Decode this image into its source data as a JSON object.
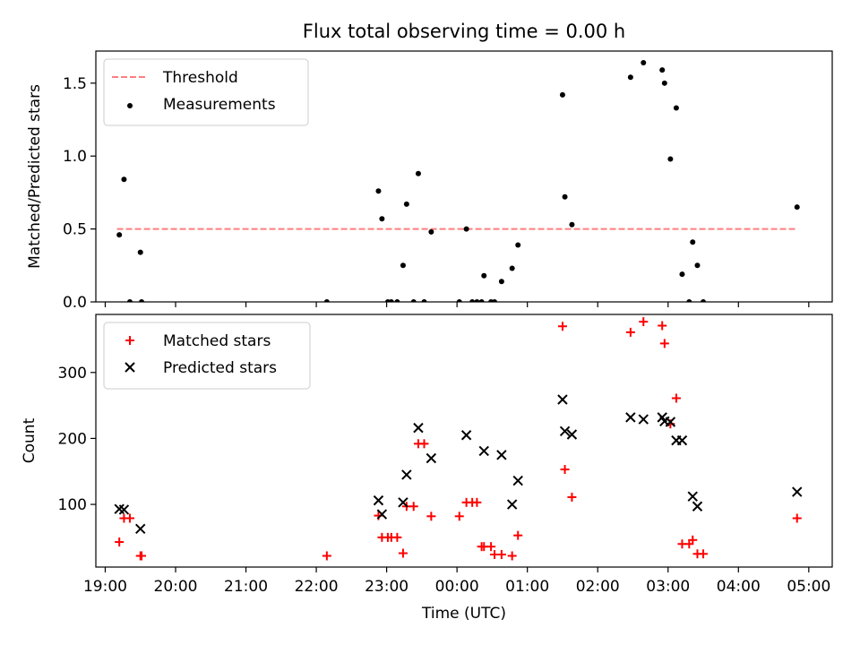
{
  "chart_data": [
    {
      "type": "scatter",
      "title": "Flux total observing time = 0.00 h",
      "ylabel": "Matched/Predicted stars",
      "ylim": [
        0,
        1.72
      ],
      "yticks": [
        "0.0",
        "0.5",
        "1.0",
        "1.5"
      ],
      "ytick_values": [
        0,
        0.5,
        1.0,
        1.5
      ],
      "legend_position": "top-left",
      "threshold": {
        "name": "Threshold",
        "value": 0.5,
        "x_range": [
          "19:10",
          "04:50"
        ],
        "color": "#ff7f7f",
        "style": "dashed"
      },
      "series": [
        {
          "name": "Measurements",
          "color": "#000000",
          "marker": "dot",
          "points": [
            [
              "19:12",
              0.46
            ],
            [
              "19:16",
              0.84
            ],
            [
              "19:21",
              0.0
            ],
            [
              "19:30",
              0.34
            ],
            [
              "19:31",
              0.0
            ],
            [
              "22:09",
              0.0
            ],
            [
              "22:53",
              0.76
            ],
            [
              "22:56",
              0.57
            ],
            [
              "23:01",
              0.0
            ],
            [
              "23:04",
              0.0
            ],
            [
              "23:09",
              0.0
            ],
            [
              "23:14",
              0.25
            ],
            [
              "23:17",
              0.67
            ],
            [
              "23:23",
              0.0
            ],
            [
              "23:27",
              0.88
            ],
            [
              "23:32",
              0.0
            ],
            [
              "23:38",
              0.48
            ],
            [
              "00:02",
              0.0
            ],
            [
              "00:08",
              0.5
            ],
            [
              "00:13",
              0.0
            ],
            [
              "00:17",
              0.0
            ],
            [
              "00:21",
              0.0
            ],
            [
              "00:23",
              0.18
            ],
            [
              "00:29",
              0.0
            ],
            [
              "00:32",
              0.0
            ],
            [
              "00:38",
              0.14
            ],
            [
              "00:47",
              0.23
            ],
            [
              "00:52",
              0.39
            ],
            [
              "01:30",
              1.42
            ],
            [
              "01:32",
              0.72
            ],
            [
              "01:38",
              0.53
            ],
            [
              "02:28",
              1.54
            ],
            [
              "02:39",
              1.64
            ],
            [
              "02:55",
              1.59
            ],
            [
              "02:57",
              1.5
            ],
            [
              "03:02",
              0.98
            ],
            [
              "03:07",
              1.33
            ],
            [
              "03:12",
              0.19
            ],
            [
              "03:18",
              0.0
            ],
            [
              "03:21",
              0.41
            ],
            [
              "03:25",
              0.25
            ],
            [
              "03:30",
              0.0
            ],
            [
              "04:50",
              0.65
            ]
          ]
        }
      ]
    },
    {
      "type": "scatter",
      "xlabel": "Time (UTC)",
      "ylabel": "Count",
      "ylim": [
        5,
        388
      ],
      "yticks": [
        "100",
        "200",
        "300"
      ],
      "ytick_values": [
        100,
        200,
        300
      ],
      "xlim": [
        "18:52",
        "05:20"
      ],
      "xtick_labels": [
        "19:00",
        "20:00",
        "21:00",
        "22:00",
        "23:00",
        "00:00",
        "01:00",
        "02:00",
        "03:00",
        "04:00",
        "05:00"
      ],
      "legend_position": "top-left",
      "series": [
        {
          "name": "Matched stars",
          "color": "#ff0000",
          "marker": "plus",
          "points": [
            [
              "19:12",
              43
            ],
            [
              "19:16",
              79
            ],
            [
              "19:21",
              79
            ],
            [
              "19:30",
              22
            ],
            [
              "19:31",
              22
            ],
            [
              "22:09",
              22
            ],
            [
              "22:53",
              83
            ],
            [
              "22:56",
              50
            ],
            [
              "23:01",
              50
            ],
            [
              "23:04",
              50
            ],
            [
              "23:09",
              50
            ],
            [
              "23:14",
              26
            ],
            [
              "23:17",
              97
            ],
            [
              "23:23",
              97
            ],
            [
              "23:27",
              192
            ],
            [
              "23:32",
              192
            ],
            [
              "23:38",
              82
            ],
            [
              "00:02",
              82
            ],
            [
              "00:08",
              103
            ],
            [
              "00:13",
              103
            ],
            [
              "00:17",
              103
            ],
            [
              "00:21",
              36
            ],
            [
              "00:23",
              36
            ],
            [
              "00:29",
              36
            ],
            [
              "00:32",
              24
            ],
            [
              "00:38",
              24
            ],
            [
              "00:47",
              22
            ],
            [
              "00:52",
              53
            ],
            [
              "01:30",
              370
            ],
            [
              "01:32",
              153
            ],
            [
              "01:38",
              111
            ],
            [
              "02:28",
              361
            ],
            [
              "02:39",
              377
            ],
            [
              "02:55",
              371
            ],
            [
              "02:57",
              344
            ],
            [
              "03:02",
              222
            ],
            [
              "03:07",
              261
            ],
            [
              "03:12",
              40
            ],
            [
              "03:18",
              40
            ],
            [
              "03:21",
              46
            ],
            [
              "03:25",
              25
            ],
            [
              "03:30",
              25
            ],
            [
              "04:50",
              79
            ]
          ]
        },
        {
          "name": "Predicted stars",
          "color": "#000000",
          "marker": "x",
          "points": [
            [
              "19:12",
              93
            ],
            [
              "19:16",
              92
            ],
            [
              "19:30",
              63
            ],
            [
              "22:53",
              106
            ],
            [
              "22:56",
              85
            ],
            [
              "23:14",
              103
            ],
            [
              "23:17",
              145
            ],
            [
              "23:27",
              216
            ],
            [
              "23:38",
              170
            ],
            [
              "00:08",
              205
            ],
            [
              "00:23",
              181
            ],
            [
              "00:38",
              175
            ],
            [
              "00:47",
              100
            ],
            [
              "00:52",
              136
            ],
            [
              "01:30",
              259
            ],
            [
              "01:32",
              211
            ],
            [
              "01:38",
              206
            ],
            [
              "02:28",
              232
            ],
            [
              "02:39",
              229
            ],
            [
              "02:55",
              232
            ],
            [
              "02:57",
              226
            ],
            [
              "03:02",
              225
            ],
            [
              "03:07",
              197
            ],
            [
              "03:12",
              197
            ],
            [
              "03:21",
              112
            ],
            [
              "03:25",
              97
            ],
            [
              "04:50",
              119
            ]
          ]
        }
      ]
    }
  ]
}
